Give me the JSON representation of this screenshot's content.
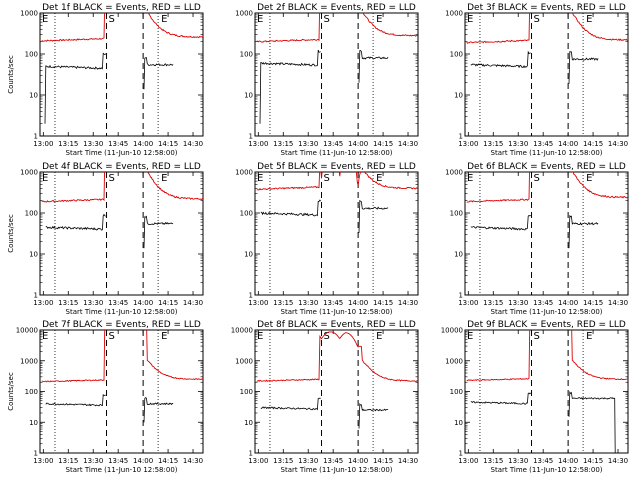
{
  "chart_data": {
    "type": "line",
    "yscale": "log",
    "ylabel": "Counts/sec",
    "xlabel": "Start Time (11-Jun-10 12:58:00)",
    "x_ticks": [
      "13:00",
      "13:15",
      "13:30",
      "13:45",
      "14:00",
      "14:15",
      "14:30"
    ],
    "y_ticks": [
      "1",
      "10",
      "100",
      "1000"
    ],
    "ylim": [
      1,
      1000
    ],
    "ylim_large": [
      1,
      10000
    ],
    "y_ticks_large": [
      "1",
      "10",
      "100",
      "1000",
      "10000"
    ],
    "series_colors": {
      "events": "#000000",
      "lld": "#dd0000"
    },
    "dotted_markers": [
      "13:07",
      "14:09"
    ],
    "dashed_markers": [
      "13:38",
      "14:00"
    ],
    "marker_labels": [
      "S",
      "E"
    ],
    "panels": [
      {
        "title": "Det 1f BLACK = Events, RED = LLD",
        "ymax": 1000,
        "red_base": 210,
        "black_base": 50,
        "red_after": 260,
        "black_after": 55,
        "black_early_drop": true,
        "black_late_drop": false,
        "double_peak": false
      },
      {
        "title": "Det 2f BLACK = Events, RED = LLD",
        "ymax": 1000,
        "red_base": 200,
        "black_base": 60,
        "red_after": 280,
        "black_after": 80,
        "black_early_drop": true,
        "black_late_drop": false,
        "double_peak": false
      },
      {
        "title": "Det 3f BLACK = Events, RED = LLD",
        "ymax": 1000,
        "red_base": 190,
        "black_base": 55,
        "red_after": 220,
        "black_after": 75,
        "black_early_drop": false,
        "black_late_drop": false,
        "double_peak": false
      },
      {
        "title": "Det 4f BLACK = Events, RED = LLD",
        "ymax": 1000,
        "red_base": 190,
        "black_base": 45,
        "red_after": 220,
        "black_after": 55,
        "black_early_drop": false,
        "black_late_drop": false,
        "double_peak": false
      },
      {
        "title": "Det 5f BLACK = Events, RED = LLD",
        "ymax": 1000,
        "red_base": 380,
        "black_base": 100,
        "red_after": 400,
        "black_after": 130,
        "black_early_drop": false,
        "black_late_drop": false,
        "double_peak": true
      },
      {
        "title": "Det 6f BLACK = Events, RED = LLD",
        "ymax": 1000,
        "red_base": 190,
        "black_base": 45,
        "red_after": 240,
        "black_after": 55,
        "black_early_drop": false,
        "black_late_drop": false,
        "double_peak": false
      },
      {
        "title": "Det 7f BLACK = Events, RED = LLD",
        "ymax": 10000,
        "red_base": 210,
        "black_base": 40,
        "red_after": 250,
        "black_after": 40,
        "black_early_drop": false,
        "black_late_drop": false,
        "double_peak": false
      },
      {
        "title": "Det 8f BLACK = Events, RED = LLD",
        "ymax": 10000,
        "red_base": 220,
        "black_base": 30,
        "red_after": 220,
        "black_after": 25,
        "black_early_drop": false,
        "black_late_drop": false,
        "double_peak": true
      },
      {
        "title": "Det 9f BLACK = Events, RED = LLD",
        "ymax": 10000,
        "red_base": 230,
        "black_base": 45,
        "red_after": 250,
        "black_after": 60,
        "black_early_drop": false,
        "black_late_drop": true,
        "double_peak": false
      }
    ]
  }
}
